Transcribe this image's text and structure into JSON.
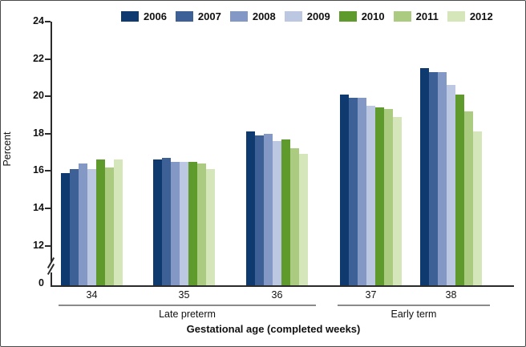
{
  "chart_data": {
    "type": "bar",
    "title": "",
    "ylabel": "Percent",
    "xlabel": "Gestational age (completed weeks)",
    "categories": [
      "34",
      "35",
      "36",
      "37",
      "38"
    ],
    "category_groups": [
      {
        "label": "Late preterm",
        "first_category": 0,
        "last_category": 2
      },
      {
        "label": "Early term",
        "first_category": 3,
        "last_category": 4
      }
    ],
    "series": [
      {
        "name": "2006",
        "color": "#0e3a6f",
        "values": [
          15.9,
          16.6,
          18.1,
          20.1,
          21.5
        ]
      },
      {
        "name": "2007",
        "color": "#3d6096",
        "values": [
          16.1,
          16.7,
          17.9,
          19.9,
          21.3
        ]
      },
      {
        "name": "2008",
        "color": "#8398c5",
        "values": [
          16.4,
          16.5,
          18.0,
          19.9,
          21.3
        ]
      },
      {
        "name": "2009",
        "color": "#bcc7e1",
        "values": [
          16.1,
          16.5,
          17.6,
          19.5,
          20.6
        ]
      },
      {
        "name": "2010",
        "color": "#5e9a2c",
        "values": [
          16.6,
          16.5,
          17.7,
          19.4,
          20.1
        ]
      },
      {
        "name": "2011",
        "color": "#abcb80",
        "values": [
          16.2,
          16.4,
          17.2,
          19.3,
          19.2
        ]
      },
      {
        "name": "2012",
        "color": "#d4e6ba",
        "values": [
          16.6,
          16.1,
          16.9,
          18.9,
          18.1
        ]
      }
    ],
    "y_ticks": [
      "24",
      "22",
      "20",
      "18",
      "16",
      "14",
      "12"
    ],
    "y_zero_label": "0",
    "ylim_display": [
      12,
      24
    ],
    "axis_break": true,
    "legend_position": "top",
    "grid": false
  }
}
